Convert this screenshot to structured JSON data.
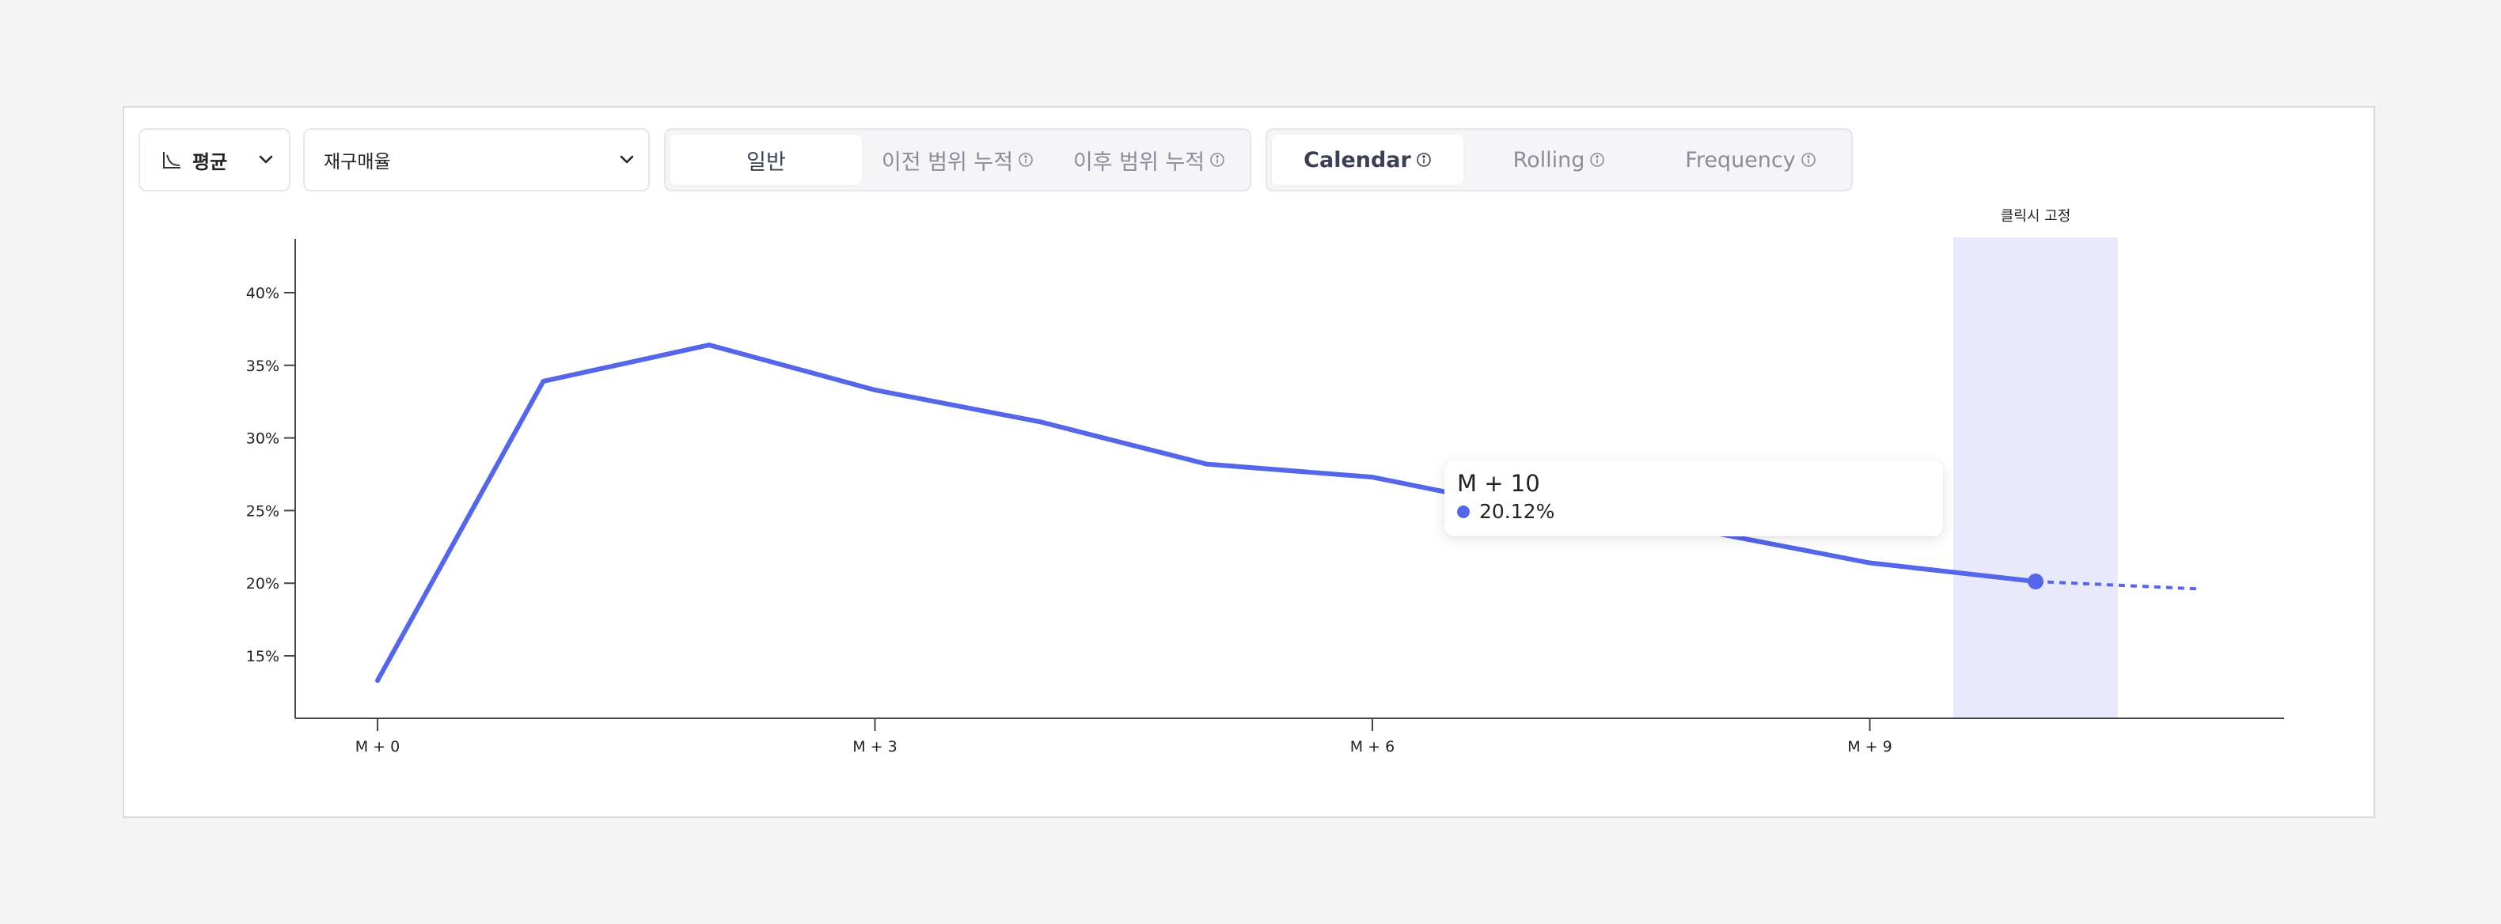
{
  "toolbar": {
    "aggregate": {
      "label": "평균",
      "icon": "line-chart-icon"
    },
    "metric": {
      "label": "재구매율"
    },
    "accumulation_tabs": [
      {
        "label": "일반",
        "active": true,
        "info": false
      },
      {
        "label": "이전 범위 누적",
        "active": false,
        "info": true
      },
      {
        "label": "이후 범위 누적",
        "active": false,
        "info": true
      }
    ],
    "period_tabs": [
      {
        "label": "Calendar",
        "active": true,
        "info": true
      },
      {
        "label": "Rolling",
        "active": false,
        "info": true
      },
      {
        "label": "Frequency",
        "active": false,
        "info": true
      }
    ]
  },
  "highlight": {
    "label": "클릭시 고정"
  },
  "tooltip": {
    "title": "M + 10",
    "value": "20.12%"
  },
  "colors": {
    "line": "#5566e8",
    "highlight": "#e8e9fa",
    "axis": "#444444"
  },
  "chart_data": {
    "type": "line",
    "x": [
      "M + 0",
      "M + 1",
      "M + 2",
      "M + 3",
      "M + 4",
      "M + 5",
      "M + 6",
      "M + 7",
      "M + 8",
      "M + 9",
      "M + 10",
      "M + 11"
    ],
    "values": [
      13.3,
      33.9,
      36.4,
      33.3,
      31.1,
      28.2,
      27.3,
      25.0,
      23.6,
      21.4,
      20.12,
      19.6
    ],
    "projected_from_index": 10,
    "selected_index": 10,
    "xticks": [
      "M + 0",
      "M + 3",
      "M + 6",
      "M + 9"
    ],
    "yticks": [
      "15%",
      "20%",
      "25%",
      "30%",
      "35%",
      "40%"
    ],
    "ytick_values": [
      15,
      20,
      25,
      30,
      35,
      40
    ],
    "ylim": [
      10.7,
      43.7
    ],
    "grid": false,
    "legend": "none"
  }
}
